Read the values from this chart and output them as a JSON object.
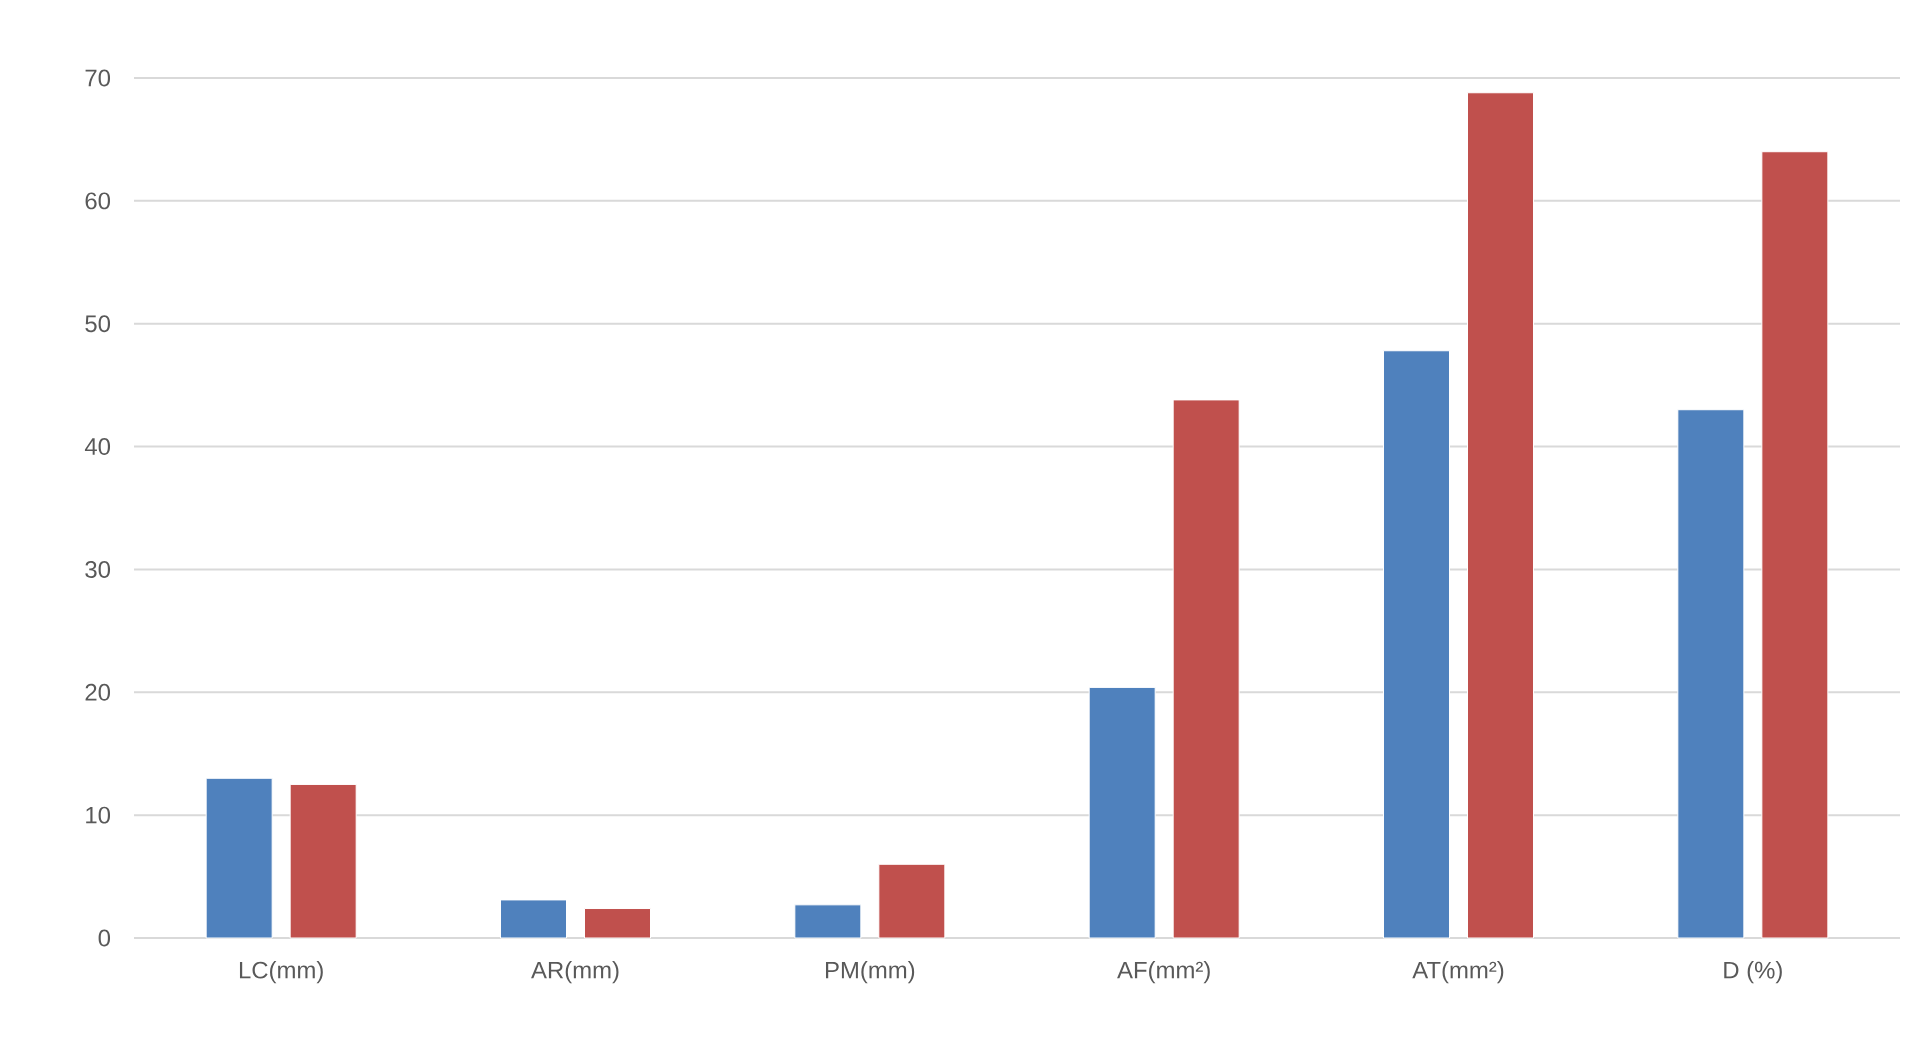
{
  "chart_data": {
    "type": "bar",
    "categories": [
      "LC(mm)",
      "AR(mm)",
      "PM(mm)",
      "AF(mm²)",
      "AT(mm²)",
      "D (%)"
    ],
    "series": [
      {
        "color": "#4f81bd",
        "values": [
          13.0,
          3.1,
          2.7,
          20.4,
          47.8,
          43.0
        ]
      },
      {
        "color": "#c0504d",
        "values": [
          12.5,
          2.4,
          6.0,
          43.8,
          68.8,
          64.0
        ]
      }
    ],
    "ylim": [
      0,
      70
    ],
    "yticks": [
      0,
      10,
      20,
      30,
      40,
      50,
      60,
      70
    ],
    "grid": "y",
    "legend": false
  }
}
